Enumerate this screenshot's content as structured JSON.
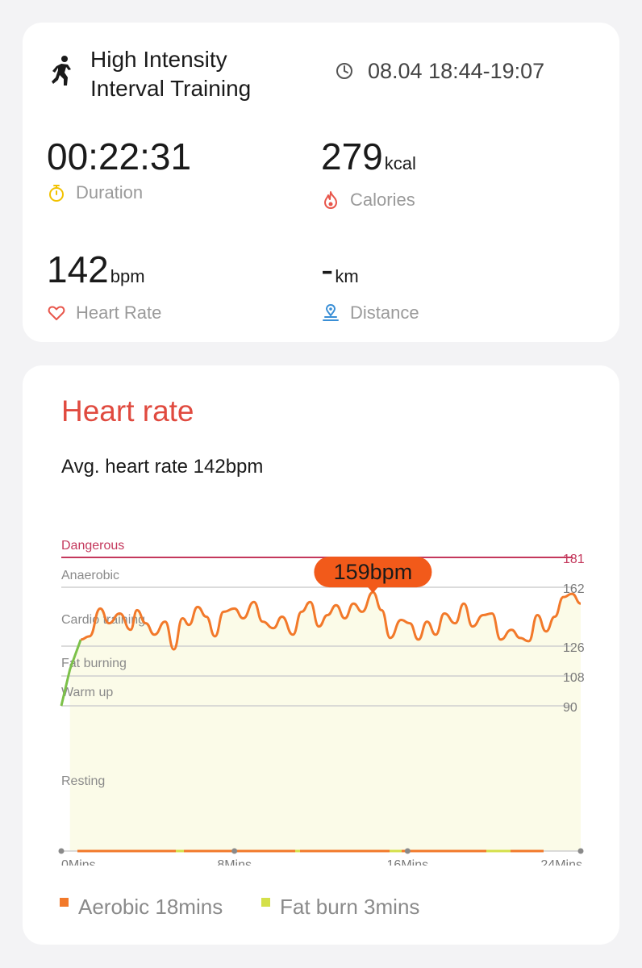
{
  "summary": {
    "workout_title": "High Intensity Interval Training",
    "time_range": "08.04 18:44-19:07",
    "duration": {
      "value": "00:22:31",
      "label": "Duration"
    },
    "calories": {
      "value": "279",
      "unit": "kcal",
      "label": "Calories"
    },
    "heart_rate": {
      "value": "142",
      "unit": "bpm",
      "label": "Heart Rate"
    },
    "distance": {
      "value": "-",
      "unit": "km",
      "label": "Distance"
    },
    "icons": {
      "workout": "running-person-icon",
      "clock": "clock-icon",
      "duration": "stopwatch-icon",
      "calories": "flame-icon",
      "heart_rate": "heart-icon",
      "distance": "location-pin-icon"
    },
    "colors": {
      "duration_icon": "#f2c200",
      "calories_icon": "#e8564b",
      "heart_icon": "#e8564b",
      "distance_icon": "#3a8fd6"
    }
  },
  "heart_rate_card": {
    "title": "Heart rate",
    "avg_text": "Avg. heart rate 142bpm",
    "title_color": "#e04a3f"
  },
  "chart_data": {
    "type": "line",
    "x_unit": "minutes",
    "x_ticks": [
      {
        "value": 0,
        "label": "0Mins"
      },
      {
        "value": 8,
        "label": "8Mins"
      },
      {
        "value": 16,
        "label": "16Mins"
      },
      {
        "value": 24,
        "label": "24Mins"
      }
    ],
    "xlim": [
      0,
      24
    ],
    "ylim": [
      0,
      181
    ],
    "zones": [
      {
        "name": "Dangerous",
        "threshold": 181,
        "color": "#c4385c"
      },
      {
        "name": "Anaerobic",
        "threshold": 162
      },
      {
        "name": "Cardio training",
        "threshold": 126
      },
      {
        "name": "Fat burning",
        "threshold": 108
      },
      {
        "name": "Warm up",
        "threshold": 90
      },
      {
        "name": "Resting",
        "threshold": 0
      }
    ],
    "peak": {
      "x": 14.4,
      "y": 159,
      "label": "159bpm"
    },
    "series": [
      {
        "x": [
          0,
          0.4,
          0.9,
          1.3,
          1.8,
          2.2,
          2.7,
          3.2,
          3.5,
          3.9,
          4.3,
          4.8,
          5.2,
          5.6,
          5.9,
          6.3,
          6.7,
          7.1,
          7.5,
          8.0,
          8.4,
          8.9,
          9.3,
          9.8,
          10.2,
          10.7,
          11.1,
          11.5,
          11.9,
          12.3,
          12.7,
          13.1,
          13.5,
          13.9,
          14.4,
          14.8,
          15.2,
          15.7,
          16.1,
          16.5,
          16.9,
          17.3,
          17.7,
          18.2,
          18.6,
          19.0,
          19.5,
          19.9,
          20.3,
          20.8,
          21.2,
          21.6,
          22.0,
          22.4,
          22.8,
          23.2,
          23.6,
          24.0
        ],
        "y": [
          90,
          112,
          130,
          132,
          149,
          140,
          146,
          136,
          148,
          140,
          133,
          141,
          124,
          143,
          139,
          150,
          144,
          132,
          147,
          149,
          143,
          153,
          141,
          137,
          144,
          133,
          147,
          153,
          138,
          145,
          151,
          143,
          152,
          147,
          159,
          148,
          131,
          142,
          140,
          130,
          141,
          133,
          146,
          140,
          152,
          138,
          145,
          146,
          130,
          136,
          131,
          129,
          145,
          135,
          144,
          156,
          158,
          152
        ]
      }
    ],
    "colors": {
      "line_main": "#f2792a",
      "line_start": "#7cc14a",
      "fill": "#fbfbe8",
      "badge": "#f25a1a",
      "aerobic": "#f2792a",
      "fat_burn": "#d4e04a"
    }
  },
  "legend": {
    "aerobic": {
      "label": "Aerobic 18mins"
    },
    "fat_burn": {
      "label": "Fat burn 3mins"
    }
  }
}
